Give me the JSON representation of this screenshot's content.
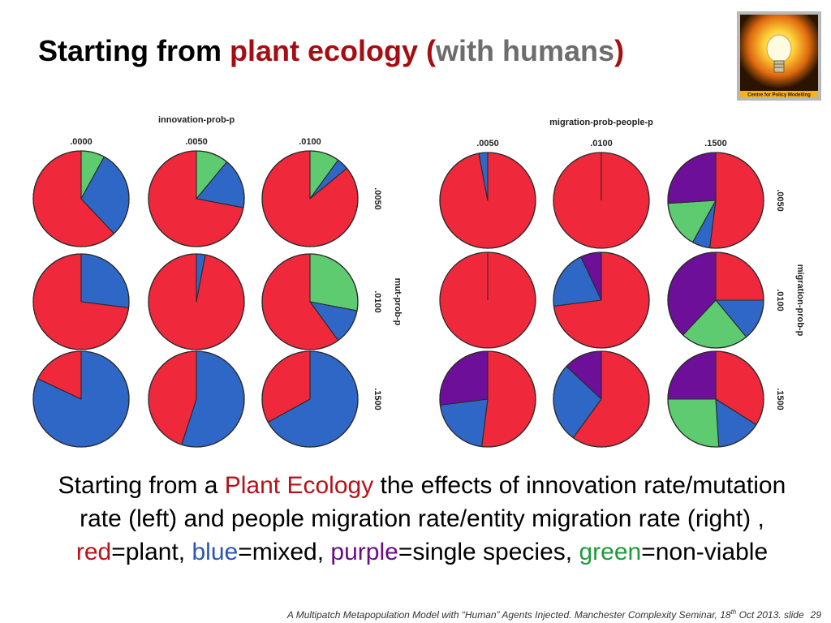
{
  "title": {
    "part1": "Starting from ",
    "part2": "plant ecology (",
    "part3": "with humans",
    "part4": ")"
  },
  "logo": {
    "text": "Centre for Policy Modelling",
    "icon": "lightbulb-icon"
  },
  "colors": {
    "plant": "#f0283c",
    "mixed": "#2f67c6",
    "single_species": "#6d0f99",
    "non_viable": "#5ecb70"
  },
  "chart_data": [
    {
      "type": "pie",
      "column_variable": "innovation-prob-p",
      "row_variable": "mut-prob-p",
      "columns": [
        ".0000",
        ".0050",
        ".0100"
      ],
      "rows": [
        ".0050",
        ".0100",
        ".1500"
      ],
      "slice_order": [
        "non_viable",
        "mixed",
        "plant",
        "single_species"
      ],
      "grid": [
        [
          {
            "plant": 62,
            "mixed": 30,
            "non_viable": 8,
            "single_species": 0
          },
          {
            "plant": 72,
            "mixed": 17,
            "non_viable": 11,
            "single_species": 0
          },
          {
            "plant": 86,
            "mixed": 4,
            "non_viable": 10,
            "single_species": 0
          }
        ],
        [
          {
            "plant": 73,
            "mixed": 27,
            "non_viable": 0,
            "single_species": 0
          },
          {
            "plant": 97,
            "mixed": 3,
            "non_viable": 0,
            "single_species": 0
          },
          {
            "plant": 60,
            "mixed": 12,
            "non_viable": 28,
            "single_species": 0
          }
        ],
        [
          {
            "plant": 18,
            "mixed": 82,
            "non_viable": 0,
            "single_species": 0
          },
          {
            "plant": 45,
            "mixed": 55,
            "non_viable": 0,
            "single_species": 0
          },
          {
            "plant": 33,
            "mixed": 67,
            "non_viable": 0,
            "single_species": 0
          }
        ]
      ]
    },
    {
      "type": "pie",
      "column_variable": "migration-prob-people-p",
      "row_variable": "migration-prob-p",
      "columns": [
        ".0050",
        ".0100",
        ".1500"
      ],
      "rows": [
        ".0050",
        ".0100",
        ".1500"
      ],
      "slice_order": [
        "plant",
        "mixed",
        "non_viable",
        "single_species"
      ],
      "grid": [
        [
          {
            "plant": 97,
            "mixed": 3,
            "non_viable": 0,
            "single_species": 0
          },
          {
            "plant": 100,
            "mixed": 0,
            "non_viable": 0,
            "single_species": 0
          },
          {
            "plant": 52,
            "mixed": 6,
            "non_viable": 16,
            "single_species": 26
          }
        ],
        [
          {
            "plant": 100,
            "mixed": 0,
            "non_viable": 0,
            "single_species": 0
          },
          {
            "plant": 73,
            "mixed": 20,
            "non_viable": 0,
            "single_species": 7
          },
          {
            "plant": 25,
            "mixed": 14,
            "non_viable": 23,
            "single_species": 38
          }
        ],
        [
          {
            "plant": 52,
            "mixed": 21,
            "non_viable": 0,
            "single_species": 27
          },
          {
            "plant": 60,
            "mixed": 27,
            "non_viable": 0,
            "single_species": 13
          },
          {
            "plant": 34,
            "mixed": 15,
            "non_viable": 26,
            "single_species": 25
          }
        ]
      ]
    }
  ],
  "caption": {
    "s1": "Starting from a ",
    "s2": "Plant Ecology",
    "s3": " the effects of innovation rate/mutation rate (left) and people migration rate/entity migration rate (right) , ",
    "s4": "red",
    "s5": "=plant, ",
    "s6": "blue",
    "s7": "=mixed, ",
    "s8": "purple",
    "s9": "=single species, ",
    "s10": "green",
    "s11": "=non-viable"
  },
  "footer": {
    "pre": "A Multipatch Metapopulation Model with “Human” Agents Injected. Manchester Complexity Seminar, 18",
    "sup": "th",
    "post": " Oct 2013.  slide",
    "slide_number": "29"
  }
}
